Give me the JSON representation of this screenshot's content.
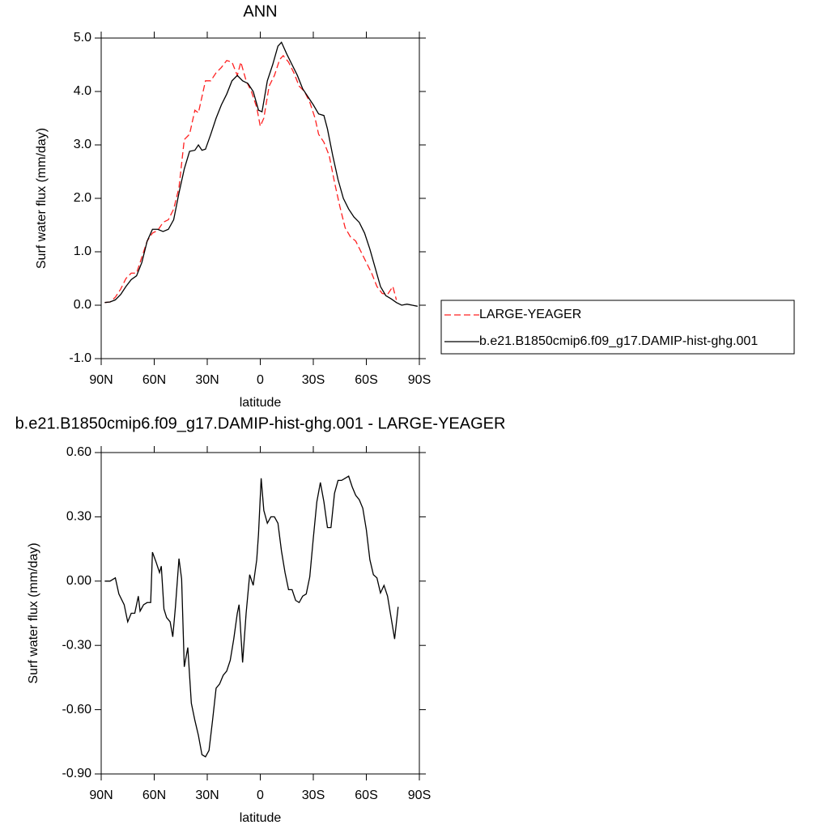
{
  "chart_data": [
    {
      "type": "line",
      "title": "ANN",
      "xlabel": "latitude",
      "ylabel": "Surf water flux (mm/day)",
      "xlim": [
        90,
        -90
      ],
      "xticks": [
        {
          "value": 90,
          "label": "90N"
        },
        {
          "value": 60,
          "label": "60N"
        },
        {
          "value": 30,
          "label": "30N"
        },
        0,
        {
          "value": -30,
          "label": "30S"
        },
        {
          "value": -60,
          "label": "60S"
        },
        {
          "value": -90,
          "label": "90S"
        }
      ],
      "ylim": [
        -1,
        5
      ],
      "yticks": [
        {
          "value": -1,
          "label": "-1.0"
        },
        {
          "value": 0,
          "label": "0.0"
        },
        {
          "value": 1,
          "label": "1.0"
        },
        {
          "value": 2,
          "label": "2.0"
        },
        {
          "value": 3,
          "label": "3.0"
        },
        {
          "value": 4,
          "label": "4.0"
        },
        {
          "value": 5,
          "label": "5.0"
        }
      ],
      "legend": "outside right",
      "series": [
        {
          "name": "LARGE-YEAGER",
          "color": "#ff2020",
          "dashed": true,
          "x": [
            88,
            85,
            82,
            79,
            76,
            73,
            70,
            67,
            64,
            61,
            58,
            55,
            52,
            49,
            46,
            43,
            40,
            37,
            35,
            33,
            31,
            28,
            25,
            22,
            19,
            16,
            13,
            11,
            8,
            5,
            2,
            0,
            -2,
            -5,
            -8,
            -11,
            -13,
            -16,
            -19,
            -22,
            -25,
            -28,
            -31,
            -33,
            -36,
            -39,
            -42,
            -45,
            -48,
            -51,
            -54,
            -57,
            -60,
            -63,
            -66,
            -69,
            -72,
            -75,
            -77
          ],
          "values": [
            0.05,
            0.06,
            0.15,
            0.3,
            0.5,
            0.6,
            0.6,
            0.9,
            1.2,
            1.35,
            1.4,
            1.55,
            1.6,
            1.8,
            2.2,
            3.1,
            3.2,
            3.65,
            3.6,
            3.9,
            4.2,
            4.2,
            4.35,
            4.45,
            4.58,
            4.55,
            4.3,
            4.55,
            4.2,
            4.0,
            3.7,
            3.35,
            3.5,
            4.1,
            4.3,
            4.6,
            4.67,
            4.55,
            4.35,
            4.1,
            4.0,
            3.8,
            3.5,
            3.2,
            3.05,
            2.8,
            2.3,
            1.85,
            1.45,
            1.28,
            1.2,
            1.0,
            0.8,
            0.6,
            0.35,
            0.22,
            0.2,
            0.35,
            0.1
          ]
        },
        {
          "name": "b.e21.B1850cmip6.f09_g17.DAMIP-hist-ghg.001",
          "color": "#000000",
          "dashed": false,
          "x": [
            88,
            85,
            82,
            79,
            76,
            73,
            70,
            67,
            64,
            61,
            58,
            55,
            52,
            49,
            46,
            43,
            40,
            37,
            35,
            33,
            31,
            28,
            25,
            22,
            19,
            16,
            13,
            10,
            7,
            4,
            1,
            -1,
            -4,
            -7,
            -10,
            -12,
            -15,
            -18,
            -21,
            -24,
            -27,
            -30,
            -33,
            -36,
            -38,
            -41,
            -44,
            -47,
            -50,
            -53,
            -56,
            -59,
            -62,
            -65,
            -68,
            -71,
            -74,
            -77,
            -80,
            -83,
            -86,
            -89
          ],
          "values": [
            0.05,
            0.06,
            0.1,
            0.2,
            0.35,
            0.48,
            0.55,
            0.8,
            1.2,
            1.42,
            1.42,
            1.38,
            1.42,
            1.6,
            2.1,
            2.55,
            2.88,
            2.9,
            3.0,
            2.9,
            2.92,
            3.2,
            3.5,
            3.75,
            3.95,
            4.2,
            4.3,
            4.2,
            4.15,
            4.0,
            3.65,
            3.62,
            4.2,
            4.5,
            4.85,
            4.92,
            4.7,
            4.5,
            4.3,
            4.05,
            3.9,
            3.75,
            3.58,
            3.55,
            3.3,
            2.8,
            2.35,
            2.0,
            1.8,
            1.65,
            1.55,
            1.35,
            1.05,
            0.7,
            0.35,
            0.18,
            0.12,
            0.05,
            0.0,
            0.02,
            0.0,
            -0.02
          ]
        }
      ]
    },
    {
      "type": "line",
      "title": "b.e21.B1850cmip6.f09_g17.DAMIP-hist-ghg.001 - LARGE-YEAGER",
      "xlabel": "latitude",
      "ylabel": "Surf water flux (mm/day)",
      "xlim": [
        90,
        -90
      ],
      "xticks": [
        {
          "value": 90,
          "label": "90N"
        },
        {
          "value": 60,
          "label": "60N"
        },
        {
          "value": 30,
          "label": "30N"
        },
        0,
        {
          "value": -30,
          "label": "30S"
        },
        {
          "value": -60,
          "label": "60S"
        },
        {
          "value": -90,
          "label": "90S"
        }
      ],
      "ylim": [
        -0.9,
        0.6
      ],
      "yticks": [
        {
          "value": -0.9,
          "label": "-0.90"
        },
        {
          "value": -0.6,
          "label": "-0.60"
        },
        {
          "value": -0.3,
          "label": "-0.30"
        },
        {
          "value": 0,
          "label": "0.00"
        },
        {
          "value": 0.3,
          "label": "0.30"
        },
        {
          "value": 0.6,
          "label": "0.60"
        }
      ],
      "series": [
        {
          "color": "#000000",
          "dashed": false,
          "x": [
            88,
            85,
            82,
            80,
            77,
            75,
            73,
            71,
            69,
            68,
            66,
            64,
            62,
            61,
            59,
            57,
            56,
            54.5,
            53,
            51,
            49.5,
            48,
            46,
            44.5,
            43,
            41,
            39,
            37,
            35,
            33,
            31,
            29,
            27,
            25,
            23,
            21,
            19,
            17,
            15,
            13,
            12,
            10,
            8,
            6,
            4,
            2,
            1,
            -0.5,
            -2,
            -4,
            -6,
            -8,
            -10,
            -12,
            -14,
            -16,
            -18,
            -20,
            -22,
            -24,
            -26,
            -28,
            -30,
            -32,
            -34,
            -36,
            -38,
            -40,
            -42,
            -44,
            -46,
            -48,
            -50,
            -52,
            -54,
            -56,
            -58,
            -60,
            -62,
            -64,
            -66,
            -68,
            -70,
            -72,
            -74,
            -76,
            -78
          ],
          "values": [
            0.0,
            0.0,
            0.015,
            -0.06,
            -0.11,
            -0.19,
            -0.15,
            -0.15,
            -0.07,
            -0.14,
            -0.11,
            -0.1,
            -0.1,
            0.135,
            0.09,
            0.04,
            0.07,
            -0.13,
            -0.17,
            -0.19,
            -0.26,
            -0.12,
            0.105,
            0.01,
            -0.4,
            -0.31,
            -0.57,
            -0.65,
            -0.72,
            -0.81,
            -0.82,
            -0.79,
            -0.65,
            -0.5,
            -0.48,
            -0.44,
            -0.42,
            -0.37,
            -0.27,
            -0.15,
            -0.11,
            -0.38,
            -0.15,
            0.03,
            -0.02,
            0.1,
            0.22,
            0.48,
            0.33,
            0.27,
            0.3,
            0.3,
            0.27,
            0.14,
            0.04,
            -0.04,
            -0.04,
            -0.09,
            -0.1,
            -0.07,
            -0.06,
            0.02,
            0.2,
            0.37,
            0.46,
            0.37,
            0.25,
            0.25,
            0.41,
            0.47,
            0.47,
            0.48,
            0.49,
            0.44,
            0.4,
            0.38,
            0.34,
            0.24,
            0.1,
            0.03,
            0.015,
            -0.055,
            -0.02,
            -0.07,
            -0.17,
            -0.27,
            -0.12
          ]
        }
      ]
    }
  ]
}
